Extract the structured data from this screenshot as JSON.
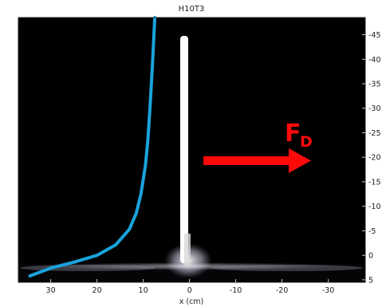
{
  "chart_data": {
    "type": "line",
    "title": "H10T3",
    "xlabel": "x (cm)",
    "ylabel": "",
    "x_axis": {
      "reversed": true,
      "range": [
        37,
        -38
      ],
      "ticks": [
        30,
        20,
        10,
        0,
        -10,
        -20,
        -30
      ],
      "tick_labels": [
        "30",
        "20",
        "10",
        "0",
        "-10",
        "-20",
        "-30"
      ]
    },
    "y_axis": {
      "position": "right",
      "reversed": true,
      "range": [
        5.5,
        -48.5
      ],
      "ticks": [
        -45,
        -40,
        -35,
        -30,
        -25,
        -20,
        -15,
        -10,
        -5,
        0,
        5
      ],
      "tick_labels": [
        "-45",
        "-40",
        "-35",
        "-30",
        "-25",
        "-20",
        "-15",
        "-10",
        "-5",
        "0",
        "5"
      ]
    },
    "series": [
      {
        "color": "#1aa3dc",
        "x": [
          34.5,
          30,
          25,
          20,
          16,
          13,
          11.5,
          10.5,
          9.5,
          9,
          8.5,
          8,
          7.5
        ],
        "y": [
          4.2,
          2.6,
          1.4,
          0,
          -2.1,
          -5.3,
          -8.6,
          -12.5,
          -18.5,
          -23.5,
          -30.7,
          -39,
          -48.5
        ]
      }
    ],
    "annotations": [
      {
        "text": "F",
        "subscript": "D",
        "color": "#ff0a0a"
      }
    ],
    "background": "#000000",
    "grid": false,
    "legend": "none"
  }
}
